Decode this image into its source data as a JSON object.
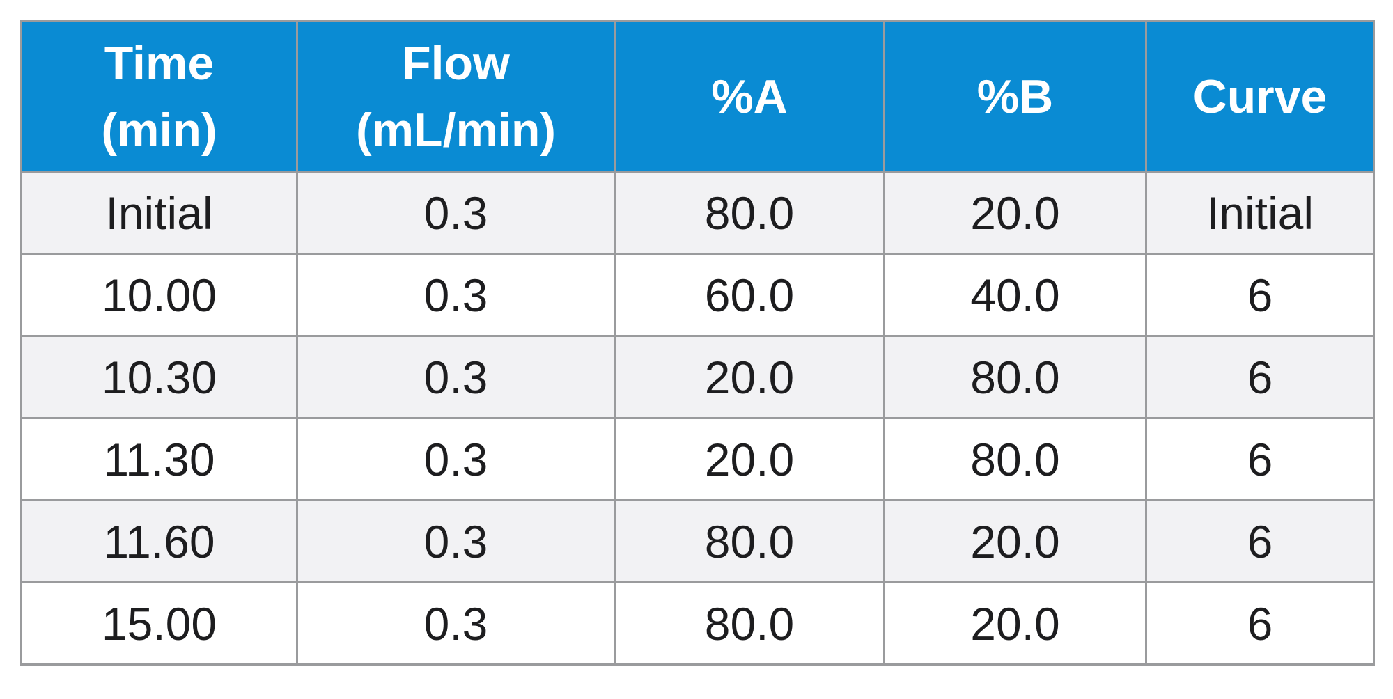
{
  "table": {
    "columns": [
      {
        "line1": "Time",
        "line2": "(min)"
      },
      {
        "line1": "Flow",
        "line2": "(mL/min)"
      },
      {
        "line1": "%A",
        "line2": ""
      },
      {
        "line1": "%B",
        "line2": ""
      },
      {
        "line1": "Curve",
        "line2": ""
      }
    ],
    "rows": [
      [
        "Initial",
        "0.3",
        "80.0",
        "20.0",
        "Initial"
      ],
      [
        "10.00",
        "0.3",
        "60.0",
        "40.0",
        "6"
      ],
      [
        "10.30",
        "0.3",
        "20.0",
        "80.0",
        "6"
      ],
      [
        "11.30",
        "0.3",
        "20.0",
        "80.0",
        "6"
      ],
      [
        "11.60",
        "0.3",
        "80.0",
        "20.0",
        "6"
      ],
      [
        "15.00",
        "0.3",
        "80.0",
        "20.0",
        "6"
      ]
    ],
    "colors": {
      "header_bg": "#0a8bd3",
      "header_text": "#ffffff",
      "row_alt_bg": "#f2f2f4",
      "row_bg": "#ffffff",
      "border": "#9a9b9d",
      "body_text": "#1d1d1f"
    }
  }
}
